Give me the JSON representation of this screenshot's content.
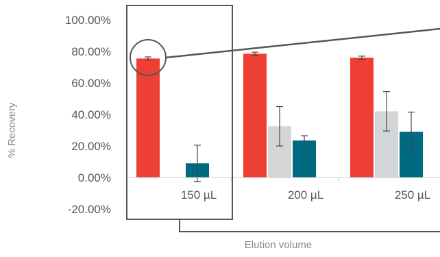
{
  "chart_data": {
    "type": "bar",
    "title": "",
    "xlabel": "Elution volume",
    "ylabel": "% Recovery",
    "ylim": [
      -20,
      100
    ],
    "y_ticks": [
      -20,
      0,
      20,
      40,
      60,
      80,
      100
    ],
    "y_tick_labels": [
      "-20.00%",
      "0.00%",
      "20.00%",
      "40.00%",
      "60.00%",
      "80.00%",
      "100.00%"
    ],
    "categories": [
      "150 µL",
      "200 µL",
      "250 µL"
    ],
    "grid": false,
    "legend": "none",
    "series": [
      {
        "color": "#ee3f34",
        "values": [
          75.5,
          78.5,
          76.0
        ],
        "errors": [
          1.0,
          1.0,
          1.0
        ]
      },
      {
        "color": "#d4d5d7",
        "values": [
          null,
          32.5,
          42.0
        ],
        "errors": [
          null,
          12.5,
          12.5
        ]
      },
      {
        "color": "#006a80",
        "values": [
          9.0,
          23.5,
          29.0
        ],
        "errors": [
          11.5,
          3.0,
          12.5
        ]
      }
    ]
  },
  "colors": {
    "axis": "#c8c8c8",
    "callout": "#555555",
    "errorbar": "#444444"
  }
}
